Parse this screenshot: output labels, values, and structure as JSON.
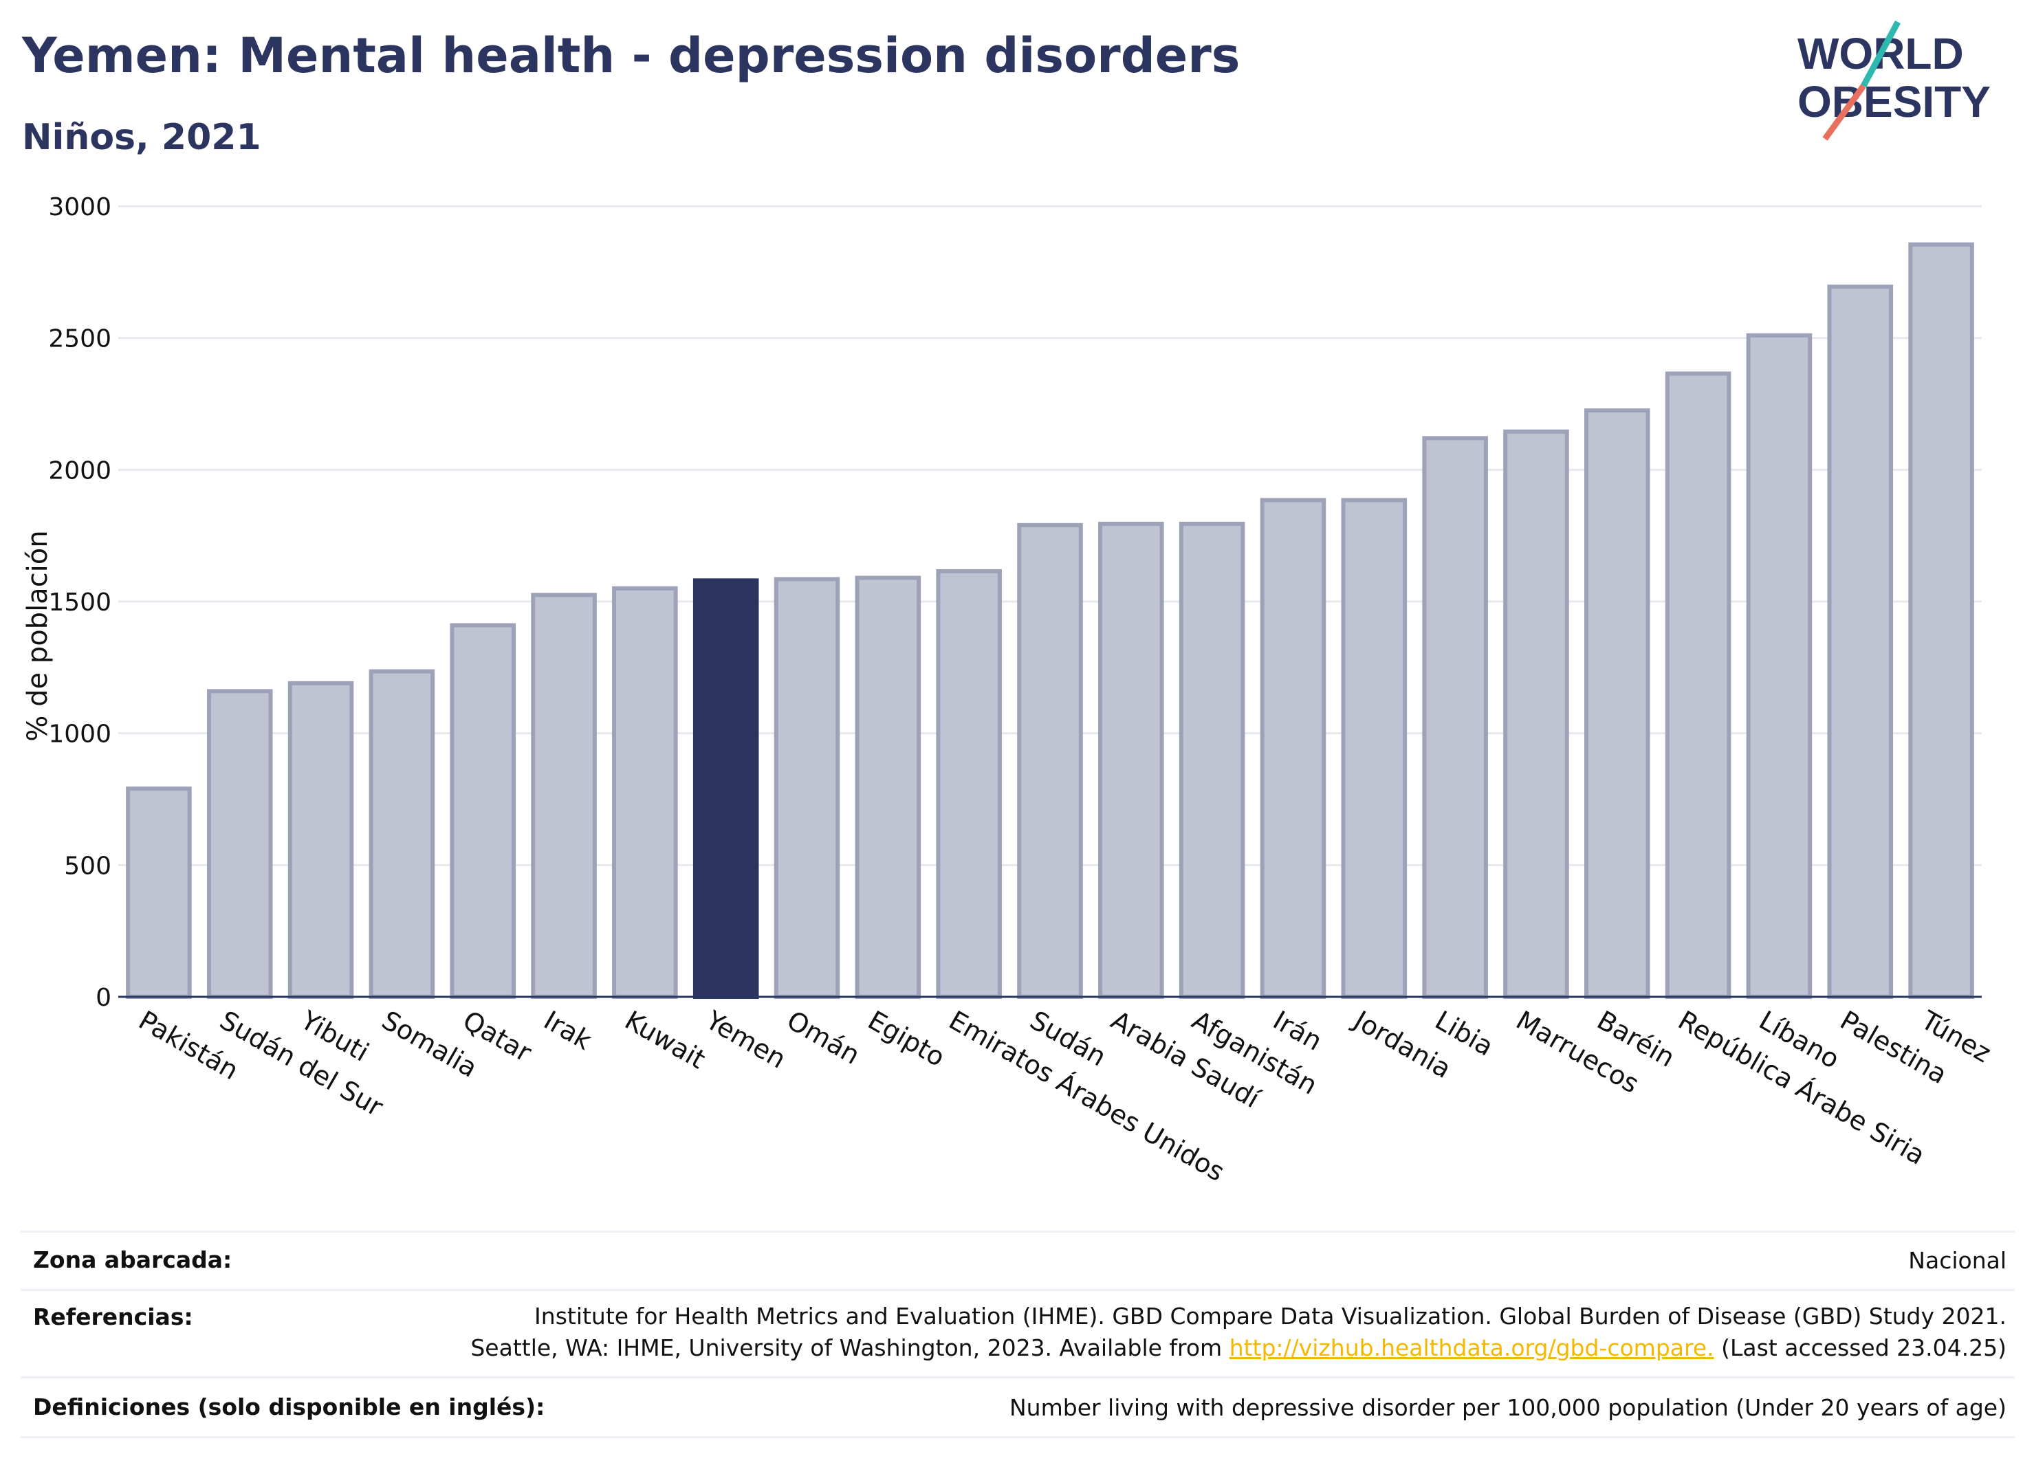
{
  "title": "Yemen: Mental health - depression disorders",
  "subtitle": "Niños, 2021",
  "logo": {
    "line1": "WORLD",
    "line2": "OBESITY",
    "colors": {
      "text": "#2b3560",
      "slash_teal": "#2fb8b0",
      "slash_coral": "#e8705f"
    }
  },
  "chart_data": {
    "type": "bar",
    "ylabel": "% de población",
    "ylim": [
      0,
      3000
    ],
    "yticks": [
      0,
      500,
      1000,
      1500,
      2000,
      2500,
      3000
    ],
    "grid": true,
    "highlight": "Yemen",
    "colors": {
      "bar": "#c0c3d1",
      "bar_border": "#9da2b8",
      "highlight": "#2b3560",
      "grid": "#e6e8ee",
      "axis": "#2b3560"
    },
    "categories": [
      "Pakistán",
      "Sudán del Sur",
      "Yibuti",
      "Somalia",
      "Qatar",
      "Irak",
      "Kuwait",
      "Yemen",
      "Omán",
      "Egipto",
      "Emiratos Árabes Unidos",
      "Sudán",
      "Arabia Saudí",
      "Afganistán",
      "Irán",
      "Jordania",
      "Libia",
      "Marruecos",
      "Baréin",
      "República Árabe Siria",
      "Líbano",
      "Palestina",
      "Túnez"
    ],
    "values": [
      790,
      1160,
      1190,
      1235,
      1410,
      1525,
      1550,
      1580,
      1585,
      1590,
      1615,
      1790,
      1795,
      1795,
      1885,
      1885,
      2120,
      2145,
      2225,
      2365,
      2510,
      2695,
      2855
    ]
  },
  "footer": {
    "zone_label": "Zona abarcada:",
    "zone_value": "Nacional",
    "ref_label": "Referencias:",
    "ref_line1": "Institute for Health Metrics and Evaluation (IHME). GBD Compare Data Visualization. Global Burden of Disease (GBD) Study 2021.",
    "ref_line2_pre": "Seattle, WA: IHME, University of Washington, 2023. Available from ",
    "ref_link": "http://vizhub.healthdata.org/gbd-compare.",
    "ref_line2_post": " (Last accessed 23.04.25)",
    "def_label": "Definiciones (solo disponible en inglés):",
    "def_value": "Number living with depressive disorder per 100,000 population (Under 20 years of age)"
  }
}
